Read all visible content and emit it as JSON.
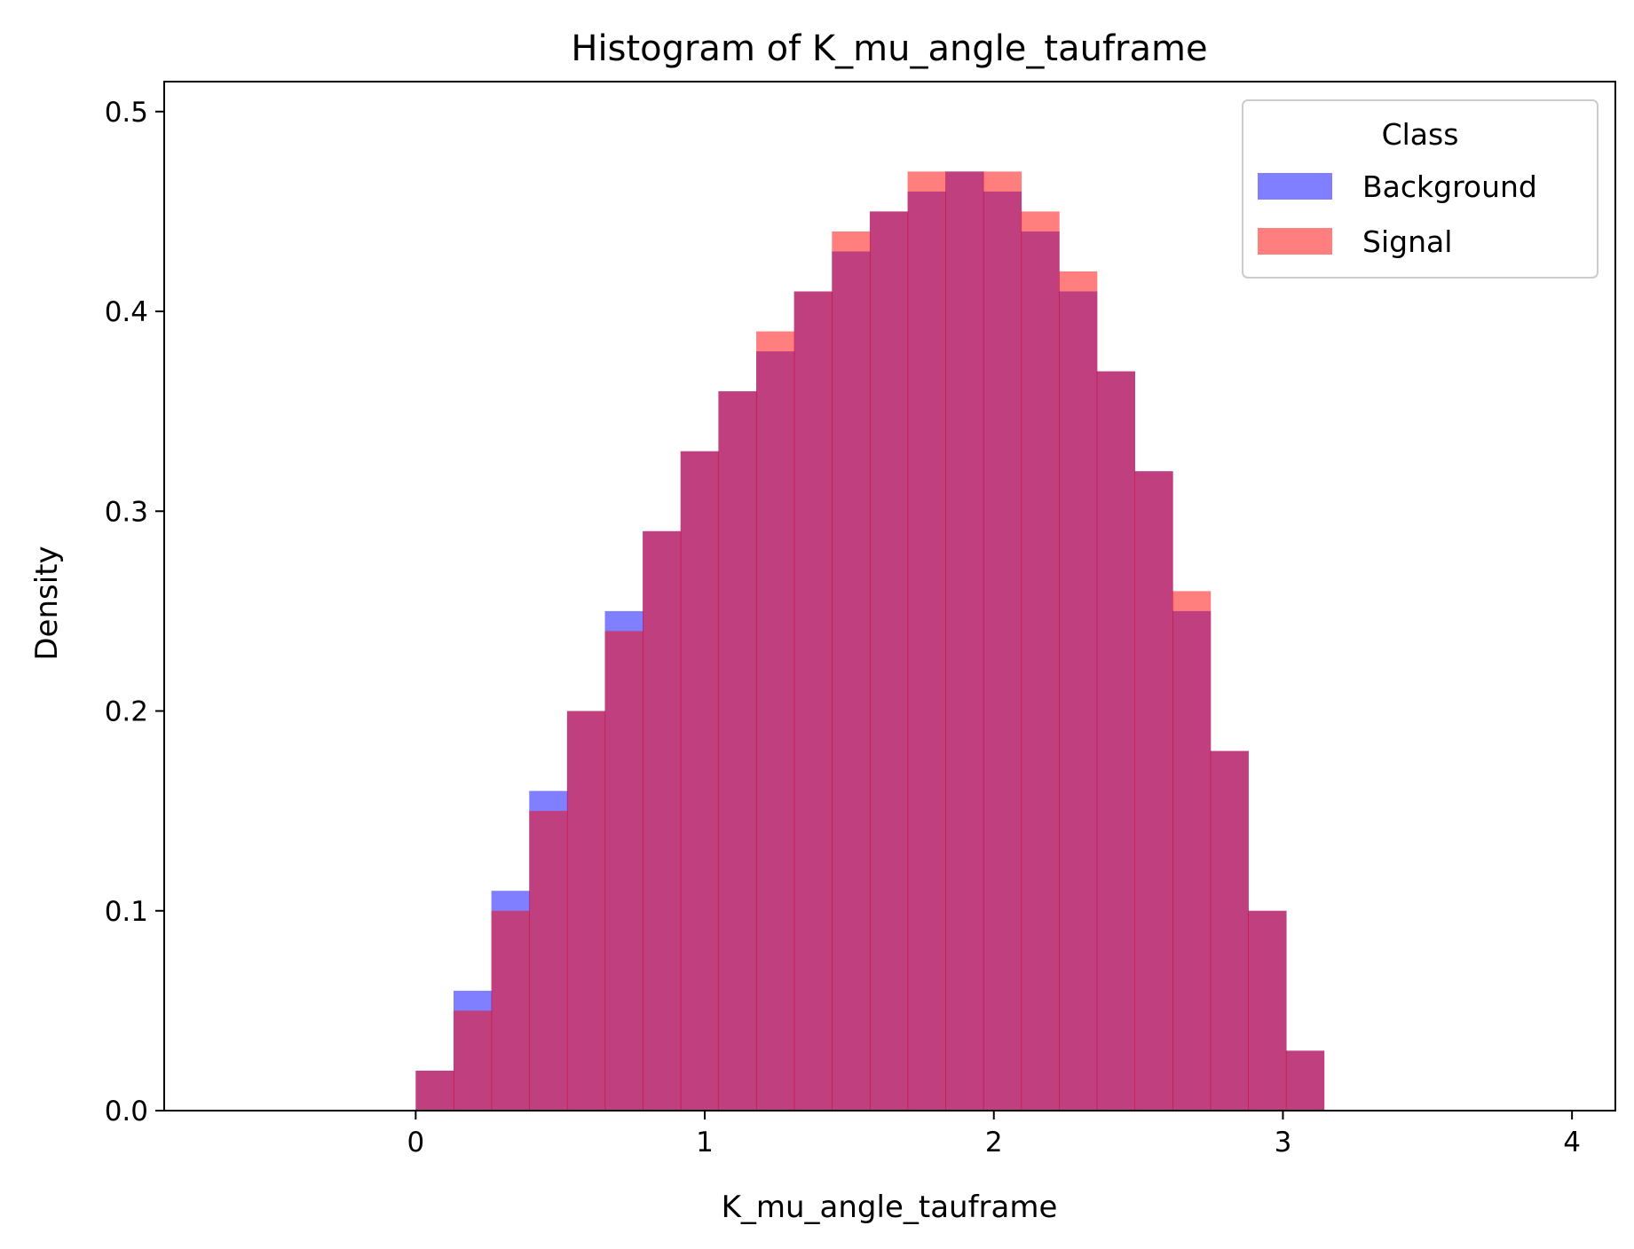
{
  "chart_data": {
    "type": "bar",
    "title": "Histogram of K_mu_angle_tauframe",
    "xlabel": "K_mu_angle_tauframe",
    "ylabel": "Density",
    "xlim": [
      -0.87,
      4.15
    ],
    "ylim": [
      0,
      0.515
    ],
    "x_ticks": [
      {
        "value": 0,
        "label": "0"
      },
      {
        "value": 1,
        "label": "1"
      },
      {
        "value": 2,
        "label": "2"
      },
      {
        "value": 3,
        "label": "3"
      },
      {
        "value": 4,
        "label": "4"
      }
    ],
    "y_ticks": [
      {
        "value": 0.0,
        "label": "0.0"
      },
      {
        "value": 0.1,
        "label": "0.1"
      },
      {
        "value": 0.2,
        "label": "0.2"
      },
      {
        "value": 0.3,
        "label": "0.3"
      },
      {
        "value": 0.4,
        "label": "0.4"
      },
      {
        "value": 0.5,
        "label": "0.5"
      }
    ],
    "bin_edges_range": [
      0.0,
      3.1416
    ],
    "bin_count": 24,
    "overlap_color": "#c13e7b",
    "legend": {
      "title": "Class",
      "placement": "upper right",
      "entries": [
        {
          "label": "Background",
          "color": "#0000ff",
          "alpha": 0.5
        },
        {
          "label": "Signal",
          "color": "#ff0000",
          "alpha": 0.5
        }
      ]
    },
    "series": [
      {
        "name": "Background",
        "color": "#0000ff",
        "alpha": 0.5,
        "values": [
          0.02,
          0.06,
          0.11,
          0.16,
          0.2,
          0.25,
          0.29,
          0.33,
          0.36,
          0.38,
          0.41,
          0.43,
          0.45,
          0.46,
          0.47,
          0.46,
          0.44,
          0.41,
          0.37,
          0.32,
          0.25,
          0.18,
          0.1,
          0.03
        ]
      },
      {
        "name": "Signal",
        "color": "#ff0000",
        "alpha": 0.5,
        "values": [
          0.02,
          0.05,
          0.1,
          0.15,
          0.2,
          0.24,
          0.29,
          0.33,
          0.36,
          0.39,
          0.41,
          0.44,
          0.45,
          0.47,
          0.47,
          0.47,
          0.45,
          0.42,
          0.37,
          0.32,
          0.26,
          0.18,
          0.1,
          0.03
        ]
      }
    ]
  }
}
